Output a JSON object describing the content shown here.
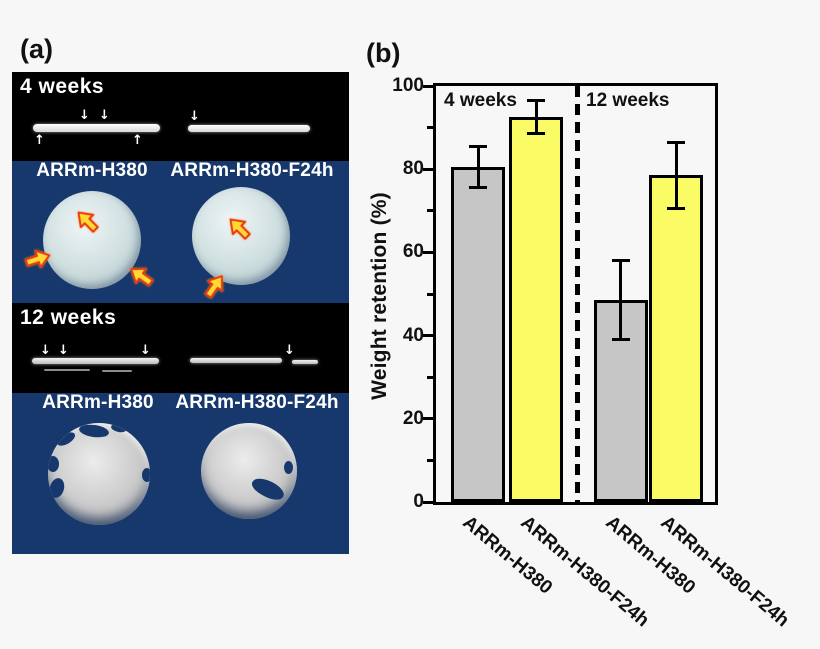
{
  "page": {
    "background": "#f7f7f7"
  },
  "panel_a": {
    "label": "(a)",
    "colors": {
      "panel_bg": "#16386c",
      "band_bg": "#000000",
      "text": "#ffffff",
      "disc_4wk": "#cfdfe0",
      "disc_12wk": "#c9c9c9",
      "arrow_fill": "#ffd930",
      "arrow_stroke": "#e83a1a"
    },
    "icons": {
      "strip_arrow_down": "↓",
      "strip_arrow_up": "↑",
      "defect_arrow": "block-arrow"
    },
    "week4": {
      "band_title": "4 weeks",
      "sample_labels": [
        "ARRm-H380",
        "ARRm-H380-F24h"
      ]
    },
    "week12": {
      "band_title": "12 weeks",
      "sample_labels": [
        "ARRm-H380",
        "ARRm-H380-F24h"
      ]
    }
  },
  "panel_b": {
    "label": "(b)"
  },
  "chart_data": {
    "type": "bar",
    "title": "",
    "xlabel": "",
    "ylabel": "Weight retention (%)",
    "ylim": [
      0,
      100
    ],
    "yticks": [
      0,
      20,
      40,
      60,
      80,
      100
    ],
    "minor_tick_step": 10,
    "grid": false,
    "legend": false,
    "group_labels": [
      "4 weeks",
      "12 weeks"
    ],
    "categories": [
      "ARRm-H380",
      "ARRm-H380-F24h",
      "ARRm-H380",
      "ARRm-H380-F24h"
    ],
    "values": [
      80.5,
      92.5,
      48.5,
      78.5
    ],
    "errors": [
      5,
      4,
      9.5,
      8
    ],
    "bar_colors": [
      "#c6c6c6",
      "#fbfb66",
      "#c6c6c6",
      "#fbfb66"
    ],
    "series": [
      {
        "name": "ARRm-H380",
        "color": "#c6c6c6"
      },
      {
        "name": "ARRm-H380-F24h",
        "color": "#fbfb66"
      }
    ],
    "separator_style": "dashed-vertical-line-between-groups"
  }
}
